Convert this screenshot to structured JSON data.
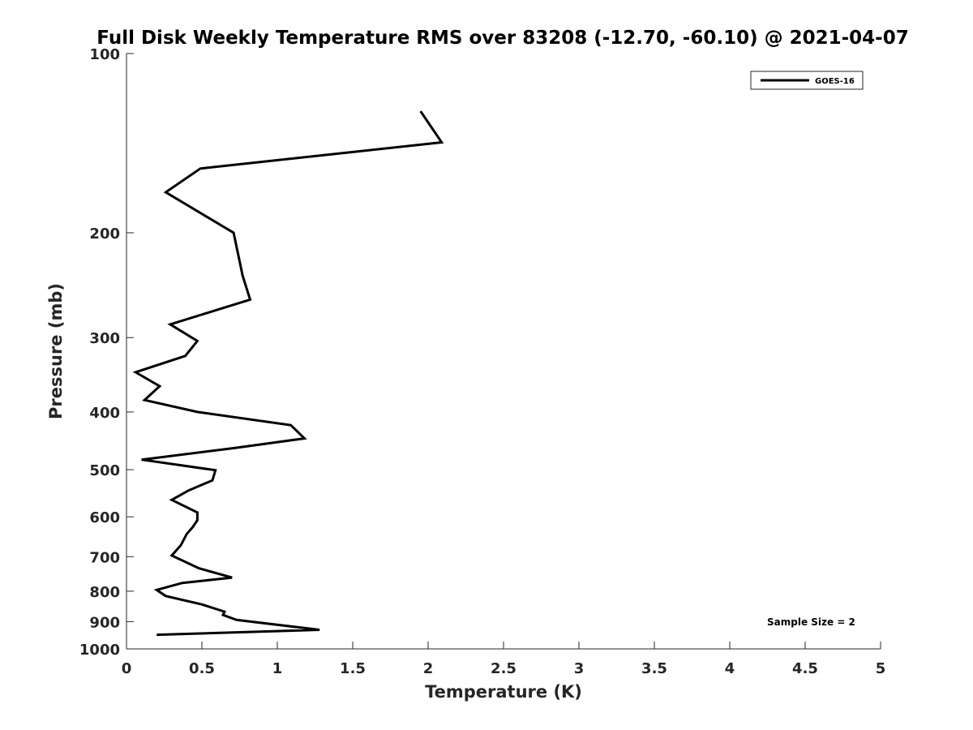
{
  "chart_data": {
    "type": "line",
    "title": "Full Disk Weekly Temperature RMS over 83208 (-12.70, -60.10) @ 2021-04-07",
    "xlabel": "Temperature (K)",
    "ylabel": "Pressure (mb)",
    "xlim": [
      0,
      5
    ],
    "ylim": [
      1000,
      100
    ],
    "y_scale": "log",
    "y_reversed": true,
    "grid": false,
    "legend_position": "top-right",
    "x_ticks": [
      0,
      0.5,
      1,
      1.5,
      2,
      2.5,
      3,
      3.5,
      4,
      4.5,
      5
    ],
    "x_tick_labels": [
      "0",
      "0.5",
      "1",
      "1.5",
      "2",
      "2.5",
      "3",
      "3.5",
      "4",
      "4.5",
      "5"
    ],
    "y_ticks": [
      100,
      200,
      300,
      400,
      500,
      600,
      700,
      800,
      900,
      1000
    ],
    "y_tick_labels": [
      "100",
      "200",
      "300",
      "400",
      "500",
      "600",
      "700",
      "800",
      "900",
      "1000"
    ],
    "annotation": "Sample Size = 2",
    "series": [
      {
        "name": "GOES-16",
        "color": "#000000",
        "points": [
          {
            "x": 1.95,
            "y": 125
          },
          {
            "x": 2.09,
            "y": 141
          },
          {
            "x": 0.49,
            "y": 156
          },
          {
            "x": 0.26,
            "y": 171
          },
          {
            "x": 0.71,
            "y": 200
          },
          {
            "x": 0.77,
            "y": 236
          },
          {
            "x": 0.82,
            "y": 259
          },
          {
            "x": 0.29,
            "y": 285
          },
          {
            "x": 0.47,
            "y": 304
          },
          {
            "x": 0.39,
            "y": 322
          },
          {
            "x": 0.06,
            "y": 343
          },
          {
            "x": 0.22,
            "y": 362
          },
          {
            "x": 0.12,
            "y": 382
          },
          {
            "x": 0.47,
            "y": 400
          },
          {
            "x": 1.09,
            "y": 421
          },
          {
            "x": 1.18,
            "y": 443
          },
          {
            "x": 0.71,
            "y": 460
          },
          {
            "x": 0.1,
            "y": 481
          },
          {
            "x": 0.59,
            "y": 501
          },
          {
            "x": 0.57,
            "y": 521
          },
          {
            "x": 0.41,
            "y": 542
          },
          {
            "x": 0.3,
            "y": 562
          },
          {
            "x": 0.47,
            "y": 590
          },
          {
            "x": 0.47,
            "y": 608
          },
          {
            "x": 0.44,
            "y": 624
          },
          {
            "x": 0.4,
            "y": 641
          },
          {
            "x": 0.36,
            "y": 670
          },
          {
            "x": 0.3,
            "y": 697
          },
          {
            "x": 0.48,
            "y": 732
          },
          {
            "x": 0.7,
            "y": 759
          },
          {
            "x": 0.37,
            "y": 775
          },
          {
            "x": 0.2,
            "y": 796
          },
          {
            "x": 0.26,
            "y": 815
          },
          {
            "x": 0.5,
            "y": 842
          },
          {
            "x": 0.65,
            "y": 866
          },
          {
            "x": 0.64,
            "y": 877
          },
          {
            "x": 0.73,
            "y": 894
          },
          {
            "x": 1.28,
            "y": 929
          },
          {
            "x": 0.2,
            "y": 947
          }
        ]
      }
    ]
  }
}
